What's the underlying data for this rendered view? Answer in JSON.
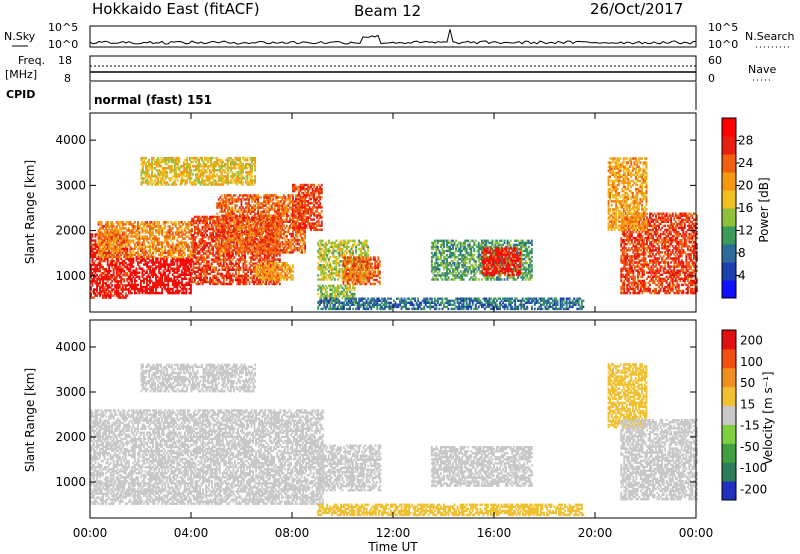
{
  "header": {
    "station": "Hokkaido East (fitACF)",
    "beam": "Beam 12",
    "date": "26/Oct/2017"
  },
  "top_panels": {
    "nsky_label": "N.Sky",
    "nsearch_label": "N.Search",
    "noise_ticks": [
      "10^5",
      "10^0"
    ],
    "freq_label": "Freq.",
    "freq_unit": "[MHz]",
    "freq_ticks": [
      "18",
      "8"
    ],
    "nave_label": "Nave",
    "nave_ticks": [
      "60",
      "0"
    ],
    "cpid_label": "CPID",
    "cpid_value": "normal (fast) 151"
  },
  "chart_data": [
    {
      "type": "heatmap",
      "name": "power",
      "ylabel": "Slant Range [km]",
      "xlabel": "",
      "xlim": [
        0,
        24
      ],
      "ylim": [
        200,
        4600
      ],
      "x_tick_labels": [
        "00:00",
        "04:00",
        "08:00",
        "12:00",
        "16:00",
        "20:00",
        "00:00"
      ],
      "y_ticks": [
        1000,
        2000,
        3000,
        4000
      ],
      "colorbar": {
        "label": "Power [dB]",
        "ticks": [
          4,
          8,
          12,
          16,
          20,
          24,
          28
        ],
        "range": [
          0,
          32
        ],
        "colors": [
          "#1010ff",
          "#1d3fb0",
          "#2e6b9a",
          "#3a9a5a",
          "#8ec03c",
          "#f0c020",
          "#f59a10",
          "#f06010",
          "#e82010",
          "#ff0000"
        ]
      },
      "regions": [
        {
          "t": [
            0.0,
            1.5
          ],
          "r": [
            500,
            1900
          ],
          "p": 28
        },
        {
          "t": [
            1.5,
            4.0
          ],
          "r": [
            600,
            1400
          ],
          "p": 30
        },
        {
          "t": [
            0.3,
            4.0
          ],
          "r": [
            1400,
            2200
          ],
          "p": 22
        },
        {
          "t": [
            4.0,
            7.5
          ],
          "r": [
            800,
            2300
          ],
          "p": 26
        },
        {
          "t": [
            5.0,
            8.5
          ],
          "r": [
            1500,
            2800
          ],
          "p": 24
        },
        {
          "t": [
            8.0,
            9.2
          ],
          "r": [
            2000,
            3000
          ],
          "p": 26
        },
        {
          "t": [
            6.5,
            8.0
          ],
          "r": [
            900,
            1300
          ],
          "p": 20
        },
        {
          "t": [
            2.0,
            6.5
          ],
          "r": [
            3000,
            3600
          ],
          "p": 18
        },
        {
          "t": [
            9.0,
            11.0
          ],
          "r": [
            900,
            1800
          ],
          "p": 16
        },
        {
          "t": [
            10.0,
            11.5
          ],
          "r": [
            800,
            1400
          ],
          "p": 24
        },
        {
          "t": [
            9.0,
            10.5
          ],
          "r": [
            400,
            800
          ],
          "p": 14
        },
        {
          "t": [
            13.5,
            17.5
          ],
          "r": [
            900,
            1800
          ],
          "p": 12
        },
        {
          "t": [
            15.5,
            17.0
          ],
          "r": [
            1000,
            1600
          ],
          "p": 28
        },
        {
          "t": [
            9.0,
            19.5
          ],
          "r": [
            250,
            500
          ],
          "p": 8
        },
        {
          "t": [
            21.0,
            24.0
          ],
          "r": [
            600,
            2400
          ],
          "p": 26
        },
        {
          "t": [
            20.5,
            22.0
          ],
          "r": [
            2000,
            3600
          ],
          "p": 20
        }
      ]
    },
    {
      "type": "heatmap",
      "name": "velocity",
      "ylabel": "Slant Range [km]",
      "xlabel": "Time UT",
      "xlim": [
        0,
        24
      ],
      "ylim": [
        200,
        4600
      ],
      "x_tick_labels": [
        "00:00",
        "04:00",
        "08:00",
        "12:00",
        "16:00",
        "20:00",
        "00:00"
      ],
      "y_ticks": [
        1000,
        2000,
        3000,
        4000
      ],
      "colorbar": {
        "label": "Velocity [m s^-1]",
        "ticks": [
          200,
          100,
          50,
          15,
          -15,
          -50,
          -100,
          -200
        ],
        "range": [
          -250,
          250
        ],
        "colors": [
          "#2030c0",
          "#2e7d5a",
          "#40a040",
          "#7ed040",
          "#c8c8c8",
          "#f0c030",
          "#f09020",
          "#f05010",
          "#e01010"
        ]
      },
      "regions": [
        {
          "t": [
            0.0,
            9.2
          ],
          "r": [
            500,
            2600
          ],
          "v": 0
        },
        {
          "t": [
            9.0,
            11.5
          ],
          "r": [
            800,
            1800
          ],
          "v": 0
        },
        {
          "t": [
            13.5,
            17.5
          ],
          "r": [
            900,
            1800
          ],
          "v": 0
        },
        {
          "t": [
            9.0,
            19.5
          ],
          "r": [
            250,
            500
          ],
          "v": 60
        },
        {
          "t": [
            20.5,
            22.0
          ],
          "r": [
            2200,
            3600
          ],
          "v": 60
        },
        {
          "t": [
            21.0,
            24.0
          ],
          "r": [
            600,
            2400
          ],
          "v": 0
        },
        {
          "t": [
            2.0,
            6.5
          ],
          "r": [
            3000,
            3600
          ],
          "v": 0
        }
      ]
    }
  ]
}
